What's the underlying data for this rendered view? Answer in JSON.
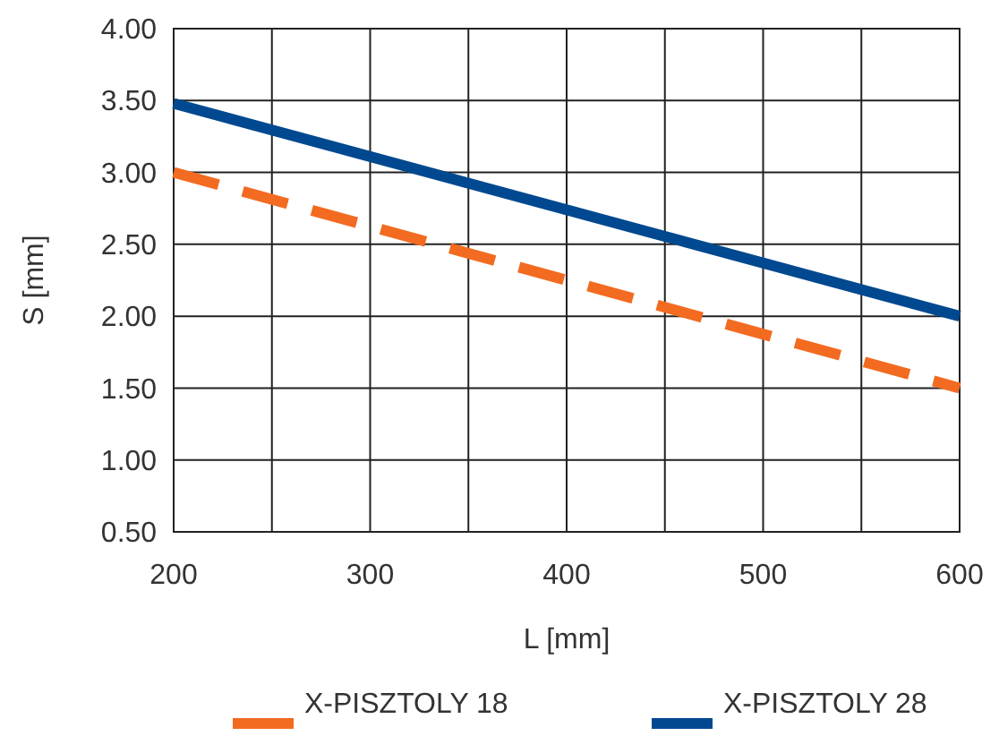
{
  "chart_data": {
    "type": "line",
    "xlabel": "L [mm]",
    "ylabel": "S [mm]",
    "x": [
      200,
      600
    ],
    "series": [
      {
        "name": "X-PISZTOLY 18",
        "color": "#f26b21",
        "values": [
          3.0,
          1.5
        ],
        "line_style": "dashed"
      },
      {
        "name": "X-PISZTOLY 28",
        "color": "#00488f",
        "values": [
          3.48,
          2.0
        ],
        "line_style": "solid"
      }
    ],
    "xlim": [
      200,
      600
    ],
    "xticks": [
      200,
      {
        "value": 250,
        "label": null
      },
      300,
      {
        "value": 350,
        "label": null
      },
      400,
      {
        "value": 450,
        "label": null
      },
      500,
      {
        "value": 550,
        "label": null
      },
      600
    ],
    "ylim": [
      0.5,
      4.0
    ],
    "yticks": [
      {
        "value": 0.5,
        "label": "0.50"
      },
      {
        "value": 1.0,
        "label": "1.00"
      },
      {
        "value": 1.5,
        "label": "1.50"
      },
      {
        "value": 2.0,
        "label": "2.00"
      },
      {
        "value": 2.5,
        "label": "2.50"
      },
      {
        "value": 3.0,
        "label": "3.00"
      },
      {
        "value": 3.5,
        "label": "3.50"
      },
      {
        "value": 4.0,
        "label": "4.00"
      }
    ],
    "grid": true,
    "legend": "bottom",
    "marker": "none"
  }
}
